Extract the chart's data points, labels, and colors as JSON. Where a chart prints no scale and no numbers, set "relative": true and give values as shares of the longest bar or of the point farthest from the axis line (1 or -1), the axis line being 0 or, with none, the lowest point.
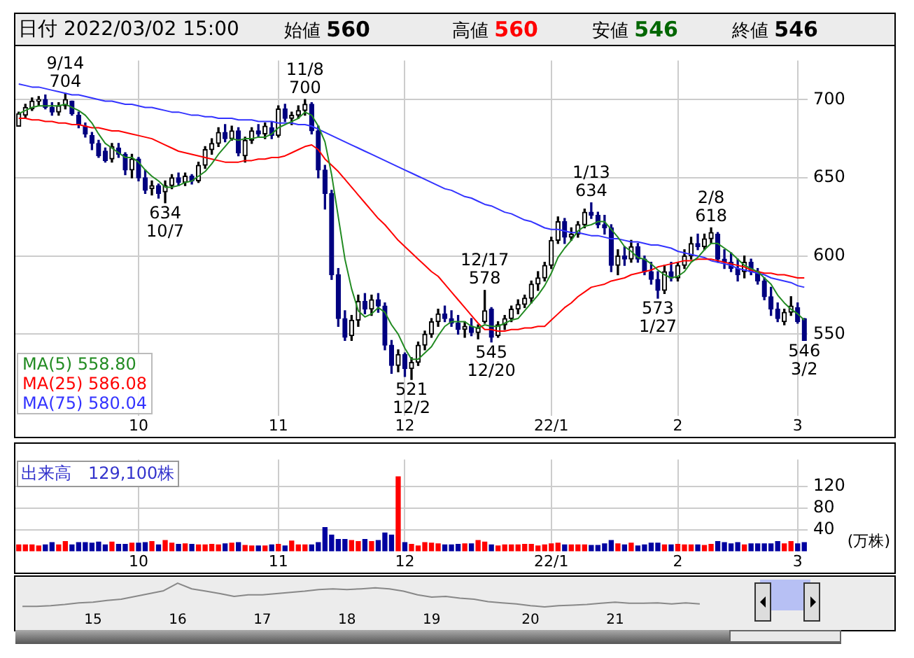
{
  "chart_data": [
    {
      "type": "candlestick",
      "title": "日付 2022/03/02 15:00",
      "categories": [
        null,
        null,
        null,
        null,
        null,
        null,
        null,
        null,
        null,
        null,
        null,
        null,
        null,
        null,
        null,
        null,
        null,
        null,
        "10",
        null,
        null,
        null,
        null,
        null,
        null,
        null,
        null,
        null,
        null,
        null,
        null,
        null,
        null,
        null,
        null,
        null,
        null,
        null,
        null,
        "11",
        null,
        null,
        null,
        null,
        null,
        null,
        null,
        null,
        null,
        null,
        null,
        null,
        null,
        null,
        null,
        null,
        null,
        null,
        "12",
        null,
        null,
        null,
        null,
        null,
        null,
        null,
        null,
        null,
        null,
        null,
        null,
        null,
        null,
        null,
        null,
        null,
        null,
        null,
        null,
        null,
        "22/1",
        null,
        null,
        null,
        null,
        null,
        null,
        null,
        null,
        null,
        null,
        null,
        null,
        null,
        null,
        null,
        null,
        null,
        null,
        "2",
        null,
        null,
        null,
        null,
        null,
        null,
        null,
        null,
        null,
        null,
        null,
        null,
        null,
        null,
        null,
        null,
        null,
        "3",
        null
      ],
      "ohlc": [
        [
          683,
          692,
          683,
          691
        ],
        [
          690,
          697,
          688,
          695
        ],
        [
          694,
          701,
          693,
          699
        ],
        [
          699,
          702,
          696,
          700
        ],
        [
          700,
          703,
          694,
          695
        ],
        [
          695,
          698,
          690,
          692
        ],
        [
          692,
          698,
          690,
          696
        ],
        [
          696,
          704,
          694,
          700
        ],
        [
          699,
          699,
          690,
          691
        ],
        [
          690,
          692,
          682,
          684
        ],
        [
          683,
          685,
          676,
          678
        ],
        [
          677,
          679,
          668,
          672
        ],
        [
          672,
          674,
          663,
          664
        ],
        [
          667,
          669,
          660,
          661
        ],
        [
          662,
          672,
          660,
          670
        ],
        [
          669,
          672,
          663,
          665
        ],
        [
          665,
          666,
          652,
          655
        ],
        [
          655,
          665,
          650,
          662
        ],
        [
          662,
          663,
          648,
          650
        ],
        [
          650,
          655,
          640,
          642
        ],
        [
          643,
          648,
          639,
          645
        ],
        [
          645,
          646,
          637,
          640
        ],
        [
          641,
          648,
          634,
          645
        ],
        [
          645,
          652,
          643,
          650
        ],
        [
          650,
          653,
          645,
          647
        ],
        [
          647,
          653,
          645,
          651
        ],
        [
          651,
          652,
          646,
          648
        ],
        [
          648,
          660,
          647,
          658
        ],
        [
          658,
          670,
          656,
          668
        ],
        [
          668,
          675,
          665,
          672
        ],
        [
          672,
          682,
          670,
          679
        ],
        [
          679,
          684,
          673,
          675
        ],
        [
          675,
          683,
          674,
          680
        ],
        [
          680,
          682,
          664,
          666
        ],
        [
          664,
          676,
          660,
          674
        ],
        [
          674,
          682,
          672,
          680
        ],
        [
          680,
          684,
          676,
          678
        ],
        [
          678,
          685,
          675,
          683
        ],
        [
          682,
          686,
          675,
          677
        ],
        [
          677,
          696,
          676,
          694
        ],
        [
          694,
          697,
          686,
          688
        ],
        [
          688,
          692,
          684,
          690
        ],
        [
          690,
          696,
          688,
          693
        ],
        [
          693,
          700,
          690,
          697
        ],
        [
          697,
          698,
          678,
          680
        ],
        [
          680,
          683,
          650,
          655
        ],
        [
          655,
          658,
          630,
          640
        ],
        [
          640,
          642,
          585,
          588
        ],
        [
          588,
          592,
          555,
          560
        ],
        [
          560,
          565,
          546,
          548
        ],
        [
          549,
          562,
          546,
          559
        ],
        [
          559,
          575,
          555,
          571
        ],
        [
          571,
          576,
          563,
          566
        ],
        [
          566,
          575,
          562,
          572
        ],
        [
          572,
          576,
          564,
          568
        ],
        [
          568,
          570,
          540,
          543
        ],
        [
          543,
          546,
          525,
          530
        ],
        [
          530,
          540,
          526,
          537
        ],
        [
          537,
          538,
          523,
          528
        ],
        [
          528,
          535,
          521,
          532
        ],
        [
          532,
          545,
          530,
          543
        ],
        [
          543,
          552,
          540,
          550
        ],
        [
          550,
          560,
          548,
          558
        ],
        [
          558,
          566,
          555,
          563
        ],
        [
          563,
          568,
          558,
          560
        ],
        [
          560,
          565,
          555,
          557
        ],
        [
          557,
          562,
          550,
          553
        ],
        [
          553,
          558,
          548,
          555
        ],
        [
          555,
          560,
          549,
          551
        ],
        [
          551,
          556,
          547,
          554
        ],
        [
          558,
          578,
          557,
          565
        ],
        [
          566,
          567,
          545,
          548
        ],
        [
          549,
          558,
          548,
          556
        ],
        [
          556,
          562,
          553,
          560
        ],
        [
          560,
          568,
          558,
          566
        ],
        [
          566,
          572,
          563,
          569
        ],
        [
          569,
          575,
          567,
          573
        ],
        [
          573,
          584,
          570,
          582
        ],
        [
          582,
          590,
          578,
          586
        ],
        [
          586,
          596,
          584,
          594
        ],
        [
          594,
          612,
          592,
          610
        ],
        [
          610,
          625,
          608,
          622
        ],
        [
          622,
          624,
          608,
          612
        ],
        [
          612,
          618,
          610,
          614
        ],
        [
          614,
          622,
          612,
          620
        ],
        [
          620,
          630,
          618,
          628
        ],
        [
          628,
          634,
          624,
          626
        ],
        [
          626,
          628,
          618,
          620
        ],
        [
          620,
          626,
          614,
          618
        ],
        [
          618,
          620,
          590,
          594
        ],
        [
          594,
          604,
          588,
          600
        ],
        [
          600,
          606,
          594,
          598
        ],
        [
          598,
          610,
          596,
          606
        ],
        [
          606,
          608,
          596,
          598
        ],
        [
          598,
          600,
          588,
          590
        ],
        [
          590,
          596,
          582,
          585
        ],
        [
          585,
          590,
          573,
          578
        ],
        [
          578,
          594,
          576,
          590
        ],
        [
          590,
          596,
          584,
          586
        ],
        [
          586,
          596,
          584,
          594
        ],
        [
          594,
          604,
          592,
          600
        ],
        [
          600,
          612,
          598,
          608
        ],
        [
          608,
          614,
          604,
          606
        ],
        [
          606,
          614,
          604,
          611
        ],
        [
          611,
          618,
          608,
          615
        ],
        [
          614,
          615,
          596,
          598
        ],
        [
          598,
          604,
          592,
          596
        ],
        [
          596,
          602,
          590,
          592
        ],
        [
          592,
          598,
          584,
          588
        ],
        [
          590,
          600,
          586,
          596
        ],
        [
          596,
          598,
          588,
          590
        ],
        [
          590,
          592,
          582,
          584
        ],
        [
          584,
          586,
          572,
          574
        ],
        [
          574,
          580,
          562,
          566
        ],
        [
          566,
          570,
          558,
          560
        ],
        [
          558,
          566,
          556,
          564
        ],
        [
          564,
          574,
          562,
          568
        ],
        [
          567,
          570,
          557,
          558
        ],
        [
          560,
          560,
          546,
          546
        ]
      ],
      "series": [
        {
          "type": "line",
          "name": "MA(5) 558.80",
          "color": "#228b22",
          "values": [
            691,
            693,
            695,
            696,
            696,
            696,
            696,
            697,
            695,
            693,
            690,
            685,
            678,
            672,
            669,
            666,
            663,
            663,
            660,
            655,
            651,
            648,
            644,
            644,
            645,
            647,
            648,
            651,
            654,
            659,
            665,
            670,
            675,
            674,
            675,
            675,
            676,
            676,
            678,
            682,
            684,
            686,
            688,
            692,
            690,
            683,
            673,
            652,
            625,
            598,
            579,
            565,
            561,
            563,
            567,
            564,
            556,
            550,
            541,
            534,
            534,
            538,
            542,
            549,
            555,
            558,
            558,
            558,
            555,
            554,
            556,
            555,
            555,
            557,
            559,
            560,
            565,
            570,
            575,
            581,
            589,
            599,
            605,
            610,
            616,
            619,
            620,
            622,
            622,
            617,
            612,
            606,
            603,
            599,
            598,
            595,
            591,
            588,
            586,
            587,
            590,
            596,
            599,
            604,
            608,
            608,
            605,
            602,
            598,
            594,
            592,
            590,
            586,
            582,
            575,
            570,
            566,
            563,
            559
          ]
        },
        {
          "type": "line",
          "name": "MA(25) 586.08",
          "color": "#ff0000",
          "values": [
            688,
            688,
            687,
            687,
            686,
            686,
            685,
            685,
            684,
            684,
            683,
            682,
            682,
            681,
            680,
            680,
            679,
            678,
            677,
            676,
            675,
            673,
            671,
            669,
            667,
            666,
            665,
            664,
            663,
            662,
            661,
            660,
            660,
            660,
            661,
            661,
            662,
            662,
            663,
            663,
            664,
            666,
            668,
            670,
            671,
            668,
            662,
            658,
            654,
            649,
            644,
            639,
            634,
            629,
            624,
            620,
            615,
            610,
            606,
            602,
            598,
            594,
            590,
            587,
            582,
            577,
            572,
            567,
            562,
            557,
            553,
            553,
            552,
            552,
            553,
            553,
            554,
            554,
            555,
            555,
            559,
            563,
            567,
            570,
            574,
            577,
            580,
            581,
            582,
            584,
            585,
            586,
            588,
            589,
            590,
            591,
            593,
            594,
            595,
            596,
            597,
            597,
            598,
            598,
            598,
            597,
            596,
            595,
            594,
            593,
            591,
            590,
            589,
            589,
            588,
            588,
            587,
            586,
            586
          ]
        },
        {
          "type": "line",
          "name": "MA(75) 580.04",
          "color": "#3333ff",
          "values": [
            710,
            709,
            708,
            708,
            707,
            706,
            705,
            704,
            703,
            703,
            702,
            701,
            700,
            699,
            699,
            698,
            697,
            697,
            696,
            695,
            695,
            694,
            693,
            692,
            692,
            691,
            690,
            690,
            689,
            689,
            688,
            688,
            688,
            687,
            687,
            687,
            686,
            686,
            686,
            685,
            685,
            685,
            684,
            684,
            683,
            681,
            679,
            677,
            675,
            673,
            671,
            669,
            667,
            665,
            663,
            661,
            659,
            657,
            655,
            653,
            651,
            649,
            647,
            645,
            643,
            642,
            640,
            638,
            637,
            635,
            633,
            632,
            630,
            628,
            627,
            625,
            623,
            622,
            620,
            618,
            617,
            617,
            616,
            615,
            615,
            614,
            613,
            613,
            612,
            611,
            611,
            610,
            609,
            609,
            608,
            607,
            607,
            606,
            605,
            603,
            602,
            601,
            600,
            599,
            597,
            596,
            595,
            594,
            592,
            591,
            590,
            589,
            588,
            586,
            585,
            584,
            583,
            581,
            580
          ]
        }
      ],
      "ylim": [
        498,
        725
      ],
      "yticks": [
        550,
        600,
        650,
        700
      ],
      "grid": true,
      "legend": "bottom left",
      "annotations": [
        "始値 560",
        "高値 560",
        "安値 546",
        "終値 546",
        {
          "text": "9/14\n704",
          "y": 704
        },
        {
          "text": "634\n10/7",
          "y": 634
        },
        {
          "text": "11/8\n700",
          "y": 700
        },
        {
          "text": "521\n12/2",
          "y": 521
        },
        {
          "text": "12/17\n578",
          "y": 578
        },
        {
          "text": "545\n12/20",
          "y": 545
        },
        {
          "text": "1/13\n634",
          "y": 634
        },
        {
          "text": "573\n1/27",
          "y": 573
        },
        {
          "text": "2/8\n618",
          "y": 618
        },
        {
          "text": "546\n3/2",
          "y": 546
        }
      ]
    },
    {
      "type": "bar",
      "ylabel": "(万株)",
      "annotations": [
        "出来高　129,100株"
      ],
      "categories": [
        null,
        null,
        null,
        null,
        null,
        null,
        null,
        null,
        null,
        null,
        null,
        null,
        null,
        null,
        null,
        null,
        null,
        null,
        "10",
        null,
        null,
        null,
        null,
        null,
        null,
        null,
        null,
        null,
        null,
        null,
        null,
        null,
        null,
        null,
        null,
        null,
        null,
        null,
        null,
        "11",
        null,
        null,
        null,
        null,
        null,
        null,
        null,
        null,
        null,
        null,
        null,
        null,
        null,
        null,
        null,
        null,
        null,
        null,
        "12",
        null,
        null,
        null,
        null,
        null,
        null,
        null,
        null,
        null,
        null,
        null,
        null,
        null,
        null,
        null,
        null,
        null,
        null,
        null,
        null,
        null,
        "22/1",
        null,
        null,
        null,
        null,
        null,
        null,
        null,
        null,
        null,
        null,
        null,
        null,
        null,
        null,
        null,
        null,
        null,
        null,
        "2",
        null,
        null,
        null,
        null,
        null,
        null,
        null,
        null,
        null,
        null,
        null,
        null,
        null,
        null,
        null,
        null,
        null,
        "3",
        null
      ],
      "values": [
        12,
        12,
        12,
        10,
        12,
        16,
        12,
        18,
        12,
        16,
        16,
        15,
        17,
        12,
        17,
        13,
        13,
        15,
        15,
        16,
        18,
        12,
        20,
        15,
        13,
        14,
        13,
        12,
        12,
        13,
        12,
        14,
        15,
        16,
        11,
        10,
        10,
        10,
        12,
        13,
        10,
        19,
        12,
        12,
        12,
        16,
        44,
        30,
        22,
        22,
        20,
        18,
        22,
        18,
        20,
        34,
        30,
        138,
        16,
        13,
        10,
        16,
        15,
        14,
        12,
        12,
        13,
        14,
        14,
        20,
        17,
        12,
        10,
        12,
        12,
        12,
        13,
        13,
        10,
        12,
        14,
        15,
        12,
        12,
        12,
        12,
        11,
        11,
        14,
        20,
        14,
        12,
        15,
        10,
        12,
        15,
        15,
        12,
        12,
        13,
        12,
        12,
        12,
        11,
        13,
        18,
        16,
        14,
        16,
        12,
        14,
        14,
        14,
        14,
        18,
        14,
        18,
        14,
        16
      ],
      "colors": [
        "#ff0000",
        "#ff0000",
        "#ff0000",
        "#ff0000",
        "#0000a0",
        "#0000a0",
        "#ff0000",
        "#ff0000",
        "#0000a0",
        "#0000a0",
        "#0000a0",
        "#0000a0",
        "#0000a0",
        "#0000a0",
        "#ff0000",
        "#0000a0",
        "#0000a0",
        "#ff0000",
        "#0000a0",
        "#0000a0",
        "#ff0000",
        "#0000a0",
        "#ff0000",
        "#ff0000",
        "#0000a0",
        "#ff0000",
        "#0000a0",
        "#ff0000",
        "#ff0000",
        "#ff0000",
        "#ff0000",
        "#0000a0",
        "#ff0000",
        "#0000a0",
        "#ff0000",
        "#ff0000",
        "#0000a0",
        "#ff0000",
        "#0000a0",
        "#ff0000",
        "#0000a0",
        "#ff0000",
        "#ff0000",
        "#ff0000",
        "#0000a0",
        "#0000a0",
        "#0000a0",
        "#0000a0",
        "#0000a0",
        "#0000a0",
        "#ff0000",
        "#ff0000",
        "#0000a0",
        "#ff0000",
        "#0000a0",
        "#0000a0",
        "#0000a0",
        "#ff0000",
        "#0000a0",
        "#ff0000",
        "#ff0000",
        "#ff0000",
        "#ff0000",
        "#ff0000",
        "#0000a0",
        "#0000a0",
        "#0000a0",
        "#ff0000",
        "#0000a0",
        "#ff0000",
        "#ff0000",
        "#0000a0",
        "#ff0000",
        "#ff0000",
        "#ff0000",
        "#ff0000",
        "#ff0000",
        "#ff0000",
        "#ff0000",
        "#ff0000",
        "#ff0000",
        "#ff0000",
        "#0000a0",
        "#ff0000",
        "#ff0000",
        "#ff0000",
        "#0000a0",
        "#0000a0",
        "#0000a0",
        "#0000a0",
        "#ff0000",
        "#0000a0",
        "#ff0000",
        "#0000a0",
        "#0000a0",
        "#0000a0",
        "#0000a0",
        "#ff0000",
        "#0000a0",
        "#ff0000",
        "#ff0000",
        "#ff0000",
        "#0000a0",
        "#ff0000",
        "#ff0000",
        "#0000a0",
        "#0000a0",
        "#0000a0",
        "#0000a0",
        "#ff0000",
        "#0000a0",
        "#0000a0",
        "#0000a0",
        "#0000a0",
        "#0000a0",
        "#ff0000",
        "#ff0000",
        "#0000a0",
        "#0000a0"
      ],
      "ylim": [
        0,
        170
      ],
      "yticks": [
        40,
        80,
        120
      ],
      "grid": true
    },
    {
      "type": "line",
      "relative": true,
      "color": "#888888",
      "categories": [
        null,
        null,
        null,
        null,
        null,
        "15",
        null,
        null,
        null,
        null,
        null,
        "16",
        null,
        null,
        null,
        null,
        null,
        "17",
        null,
        null,
        null,
        null,
        null,
        "18",
        null,
        null,
        null,
        null,
        null,
        "19",
        null,
        null,
        null,
        null,
        null,
        null,
        "20",
        null,
        null,
        null,
        null,
        null,
        "21",
        null,
        null,
        null,
        null,
        null,
        null
      ],
      "values": [
        0.02,
        0.02,
        0.05,
        0.1,
        0.17,
        0.2,
        0.27,
        0.32,
        0.44,
        0.56,
        0.68,
        1,
        0.76,
        0.66,
        0.56,
        0.44,
        0.51,
        0.51,
        0.56,
        0.61,
        0.66,
        0.73,
        0.76,
        0.73,
        0.76,
        0.8,
        0.76,
        0.66,
        0.51,
        0.41,
        0.44,
        0.37,
        0.32,
        0.22,
        0.17,
        0.12,
        0.05,
        0,
        0.05,
        0.07,
        0.1,
        0.15,
        0.2,
        0.15,
        0.15,
        0.17,
        0.12,
        0.17,
        0.12
      ]
    }
  ]
}
